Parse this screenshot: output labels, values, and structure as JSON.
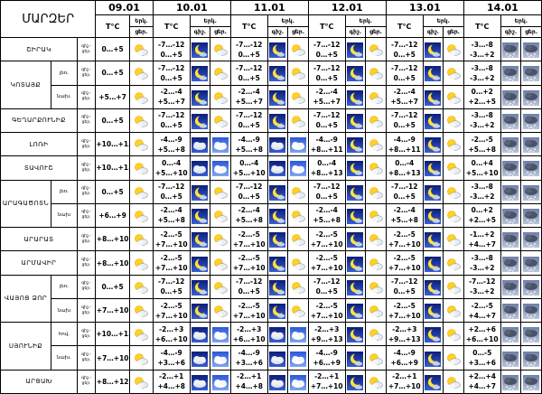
{
  "title": "ՄԱՐԶԵՐ",
  "dates": [
    "09.01",
    "10.01",
    "11.01",
    "12.01",
    "13.01",
    "14.01"
  ],
  "header": {
    "tc": "T°C",
    "erk": "Երկ.",
    "night": "գիշ.",
    "day": "ցեր."
  },
  "labels": {
    "night": "գիշ.-",
    "day": "ցեր."
  },
  "rows": [
    {
      "region": "ՇԻՐԱԿ",
      "span": 1,
      "first": [
        {
          "n": "",
          "d": "0…+5",
          "icon": "partly-cloudy"
        }
      ],
      "days": [
        {
          "n": "-7…-12",
          "d": "0…+5",
          "in": "moon",
          "id": "partly-cloudy"
        },
        {
          "n": "-7…-12",
          "d": "0…+5",
          "in": "moon",
          "id": "partly-cloudy"
        },
        {
          "n": "-7…-12",
          "d": "0…+5",
          "in": "moon",
          "id": "partly-cloudy"
        },
        {
          "n": "-7…-12",
          "d": "0…+5",
          "in": "moon",
          "id": "partly-cloudy"
        },
        {
          "n": "-3…-8",
          "d": "-3…+2",
          "in": "snow-cloud",
          "id": "snow-cloud"
        }
      ]
    },
    {
      "region": "ԿՈՏԱՅՔ",
      "span": 2,
      "sub": [
        "լեռ.",
        "նախ."
      ],
      "first": [
        {
          "n": "",
          "d": "0…+5",
          "icon": "partly-cloudy"
        },
        {
          "n": "",
          "d": "+5…+7",
          "icon": "partly-cloudy"
        }
      ],
      "days": [
        [
          {
            "n": "-7…-12",
            "d": "0…+5",
            "in": "moon",
            "id": "partly-cloudy"
          },
          {
            "n": "-7…-12",
            "d": "0…+5",
            "in": "moon",
            "id": "partly-cloudy"
          },
          {
            "n": "-7…-12",
            "d": "0…+5",
            "in": "moon",
            "id": "partly-cloudy"
          },
          {
            "n": "-7…-12",
            "d": "0…+5",
            "in": "moon",
            "id": "partly-cloudy"
          },
          {
            "n": "-3…-8",
            "d": "-3…+2",
            "in": "snow-cloud",
            "id": "snow-cloud"
          }
        ],
        [
          {
            "n": "-2…-4",
            "d": "+5…+7",
            "in": "moon",
            "id": "partly-cloudy"
          },
          {
            "n": "-2…-4",
            "d": "+5…+7",
            "in": "moon",
            "id": "partly-cloudy"
          },
          {
            "n": "-2…-4",
            "d": "+5…+7",
            "in": "moon",
            "id": "partly-cloudy"
          },
          {
            "n": "-2…-4",
            "d": "+5…+7",
            "in": "moon",
            "id": "partly-cloudy"
          },
          {
            "n": "0…+2",
            "d": "+2…+5",
            "in": "snow-cloud",
            "id": "snow-cloud"
          }
        ]
      ]
    },
    {
      "region": "ԳԵՂԱՐՔՈՒՆԻՔ",
      "span": 1,
      "first": [
        {
          "n": "",
          "d": "0…+5",
          "icon": "partly-cloudy"
        }
      ],
      "days": [
        {
          "n": "-7…-12",
          "d": "0…+5",
          "in": "moon",
          "id": "partly-cloudy"
        },
        {
          "n": "-7…-12",
          "d": "0…+5",
          "in": "moon",
          "id": "partly-cloudy"
        },
        {
          "n": "-7…-12",
          "d": "0…+5",
          "in": "moon",
          "id": "partly-cloudy"
        },
        {
          "n": "-7…-12",
          "d": "0…+5",
          "in": "moon",
          "id": "partly-cloudy"
        },
        {
          "n": "-3…-8",
          "d": "-3…+2",
          "in": "snow-cloud",
          "id": "snow-cloud"
        }
      ]
    },
    {
      "region": "ԼՈՌԻ",
      "span": 1,
      "first": [
        {
          "n": "",
          "d": "+10…+13",
          "icon": "partly-cloudy"
        }
      ],
      "days": [
        {
          "n": "-4…-9",
          "d": "+5…+8",
          "in": "cloudy-night",
          "id": "cloudy-day"
        },
        {
          "n": "-4…-9",
          "d": "+5…+8",
          "in": "cloudy-night",
          "id": "cloudy-day"
        },
        {
          "n": "-4…-9",
          "d": "+8…+11",
          "in": "moon",
          "id": "partly-cloudy"
        },
        {
          "n": "-4…-9",
          "d": "+8…+11",
          "in": "moon",
          "id": "partly-cloudy"
        },
        {
          "n": "-2…-5",
          "d": "+5…+8",
          "in": "snow-cloud",
          "id": "snow-cloud"
        }
      ]
    },
    {
      "region": "ՏԱՎՈՒՇ",
      "span": 1,
      "first": [
        {
          "n": "",
          "d": "+10…+15",
          "icon": "partly-cloudy"
        }
      ],
      "days": [
        {
          "n": "0…-4",
          "d": "+5…+10",
          "in": "cloudy-night",
          "id": "cloudy-day"
        },
        {
          "n": "0…-4",
          "d": "+5…+10",
          "in": "cloudy-night",
          "id": "cloudy-day"
        },
        {
          "n": "0…-4",
          "d": "+8…+13",
          "in": "moon",
          "id": "partly-cloudy"
        },
        {
          "n": "0…-4",
          "d": "+8…+13",
          "in": "moon",
          "id": "partly-cloudy"
        },
        {
          "n": "0…+4",
          "d": "+5…+10",
          "in": "snow-cloud",
          "id": "snow-cloud"
        }
      ]
    },
    {
      "region": "ԱՐԱԳԱԾՈՏՆ",
      "span": 2,
      "sub": [
        "լեռ.",
        "նախ"
      ],
      "first": [
        {
          "n": "",
          "d": "0…+5",
          "icon": "partly-cloudy"
        },
        {
          "n": "",
          "d": "+6…+9",
          "icon": "partly-cloudy"
        }
      ],
      "days": [
        [
          {
            "n": "-7…-12",
            "d": "0…+5",
            "in": "moon",
            "id": "partly-cloudy"
          },
          {
            "n": "-7…-12",
            "d": "0…+5",
            "in": "moon",
            "id": "partly-cloudy"
          },
          {
            "n": "-7…-12",
            "d": "0…+5",
            "in": "moon",
            "id": "partly-cloudy"
          },
          {
            "n": "-7…-12",
            "d": "0…+5",
            "in": "moon",
            "id": "partly-cloudy"
          },
          {
            "n": "-3…-8",
            "d": "-3…+2",
            "in": "snow-cloud",
            "id": "snow-cloud"
          }
        ],
        [
          {
            "n": "-2…-4",
            "d": "+5…+8",
            "in": "moon",
            "id": "partly-cloudy"
          },
          {
            "n": "-2…-4",
            "d": "+5…+8",
            "in": "moon",
            "id": "partly-cloudy"
          },
          {
            "n": "-2…-4",
            "d": "+5…+8",
            "in": "moon",
            "id": "partly-cloudy"
          },
          {
            "n": "-2…-4",
            "d": "+5…+8",
            "in": "moon",
            "id": "partly-cloudy"
          },
          {
            "n": "0…+2",
            "d": "+2…+5",
            "in": "snow-cloud",
            "id": "snow-cloud"
          }
        ]
      ]
    },
    {
      "region": "ԱՐԱՐԱՏ",
      "span": 1,
      "first": [
        {
          "n": "",
          "d": "+8…+10",
          "icon": "partly-cloudy"
        }
      ],
      "days": [
        {
          "n": "-2…-5",
          "d": "+7…+10",
          "in": "moon",
          "id": "partly-cloudy"
        },
        {
          "n": "-2…-5",
          "d": "+7…+10",
          "in": "moon",
          "id": "partly-cloudy"
        },
        {
          "n": "-2…-5",
          "d": "+7…+10",
          "in": "moon",
          "id": "partly-cloudy"
        },
        {
          "n": "-2…-5",
          "d": "+7…+10",
          "in": "moon",
          "id": "partly-cloudy"
        },
        {
          "n": "-1…+2",
          "d": "+4…+7",
          "in": "snow-cloud",
          "id": "snow-cloud"
        }
      ]
    },
    {
      "region": "ԱՐՄԱՎԻՐ",
      "span": 1,
      "first": [
        {
          "n": "",
          "d": "+8…+10",
          "icon": "partly-cloudy"
        }
      ],
      "days": [
        {
          "n": "-2…-5",
          "d": "+7…+10",
          "in": "moon",
          "id": "partly-cloudy"
        },
        {
          "n": "-2…-5",
          "d": "+7…+10",
          "in": "moon",
          "id": "partly-cloudy"
        },
        {
          "n": "-2…-5",
          "d": "+7…+10",
          "in": "moon",
          "id": "partly-cloudy"
        },
        {
          "n": "-2…-5",
          "d": "+7…+10",
          "in": "moon",
          "id": "partly-cloudy"
        },
        {
          "n": "-3…-8",
          "d": "-3…+2",
          "in": "snow-cloud",
          "id": "snow-cloud"
        }
      ]
    },
    {
      "region": "ՎԱՅՈՑ ՁՈՐ",
      "span": 2,
      "sub": [
        "լեռ.",
        "նախ"
      ],
      "first": [
        {
          "n": "",
          "d": "0…+5",
          "icon": "partly-cloudy"
        },
        {
          "n": "",
          "d": "+7…+10",
          "icon": "partly-cloudy"
        }
      ],
      "days": [
        [
          {
            "n": "-7…-12",
            "d": "0…+5",
            "in": "moon",
            "id": "partly-cloudy"
          },
          {
            "n": "-7…-12",
            "d": "0…+5",
            "in": "moon",
            "id": "partly-cloudy"
          },
          {
            "n": "-7…-12",
            "d": "0…+5",
            "in": "moon",
            "id": "partly-cloudy"
          },
          {
            "n": "-7…-12",
            "d": "0…+5",
            "in": "moon",
            "id": "partly-cloudy"
          },
          {
            "n": "-7…-12",
            "d": "-3…+2",
            "in": "snow-cloud",
            "id": "snow-cloud"
          }
        ],
        [
          {
            "n": "-2…-5",
            "d": "+7…+10",
            "in": "moon",
            "id": "partly-cloudy"
          },
          {
            "n": "-2…-5",
            "d": "+7…+10",
            "in": "moon",
            "id": "partly-cloudy"
          },
          {
            "n": "-2…-5",
            "d": "+7…+10",
            "in": "moon",
            "id": "partly-cloudy"
          },
          {
            "n": "-2…-5",
            "d": "+7…+10",
            "in": "moon",
            "id": "partly-cloudy"
          },
          {
            "n": "-2…-5",
            "d": "+4…+7",
            "in": "snow-cloud",
            "id": "snow-cloud"
          }
        ]
      ]
    },
    {
      "region": "ՍՅՈՒՆԻՔ",
      "span": 2,
      "sub": [
        "հով.",
        "նախ."
      ],
      "first": [
        {
          "n": "",
          "d": "+10…+15",
          "icon": "partly-cloudy"
        },
        {
          "n": "",
          "d": "+7…+10",
          "icon": "partly-cloudy"
        }
      ],
      "days": [
        [
          {
            "n": "-2…+3",
            "d": "+6…+10",
            "in": "cloudy-night",
            "id": "cloudy-day"
          },
          {
            "n": "-2…+3",
            "d": "+6…+10",
            "in": "cloudy-night",
            "id": "cloudy-day"
          },
          {
            "n": "-2…+3",
            "d": "+9…+13",
            "in": "moon",
            "id": "partly-cloudy"
          },
          {
            "n": "-2…+3",
            "d": "+9…+13",
            "in": "moon",
            "id": "partly-cloudy"
          },
          {
            "n": "+2…+6",
            "d": "+6…+10",
            "in": "snow-cloud",
            "id": "snow-cloud"
          }
        ],
        [
          {
            "n": "-4…-9",
            "d": "+3…+6",
            "in": "cloudy-night",
            "id": "cloudy-day"
          },
          {
            "n": "-4…-9",
            "d": "+3…+6",
            "in": "cloudy-night",
            "id": "cloudy-day"
          },
          {
            "n": "-4…-9",
            "d": "+6…+9",
            "in": "moon",
            "id": "partly-cloudy"
          },
          {
            "n": "-4…-9",
            "d": "+6…+9",
            "in": "moon",
            "id": "partly-cloudy"
          },
          {
            "n": "0…-5",
            "d": "+3…+6",
            "in": "snow-cloud",
            "id": "snow-cloud"
          }
        ]
      ]
    },
    {
      "region": "ԱՐՑԱԽ",
      "span": 1,
      "first": [
        {
          "n": "",
          "d": "+8…+12",
          "icon": "partly-cloudy"
        }
      ],
      "days": [
        {
          "n": "-2…+1",
          "d": "+4…+8",
          "in": "cloudy-night",
          "id": "cloudy-day"
        },
        {
          "n": "-2…+1",
          "d": "+4…+8",
          "in": "cloudy-night",
          "id": "cloudy-day"
        },
        {
          "n": "-2…+1",
          "d": "+7…+10",
          "in": "moon",
          "id": "partly-cloudy"
        },
        {
          "n": "-2…+1",
          "d": "+7…+10",
          "in": "moon",
          "id": "partly-cloudy"
        },
        {
          "n": "+2…+4",
          "d": "+4…+7",
          "in": "snow-cloud",
          "id": "snow-cloud"
        }
      ]
    }
  ]
}
